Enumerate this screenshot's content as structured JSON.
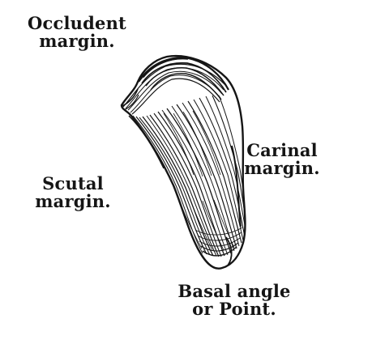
{
  "figure": {
    "labels": {
      "occludent": {
        "line1": "Occludent",
        "line2": "margin."
      },
      "carinal": {
        "line1": "Carinal",
        "line2": "margin."
      },
      "scutal": {
        "line1": "Scutal",
        "line2": "margin."
      },
      "basal": {
        "line1": "Basal angle",
        "line2": "or Point."
      }
    },
    "icon": "tergum-shell-illustration",
    "colors": {
      "ink": "#151515",
      "paper": "#ffffff"
    }
  }
}
